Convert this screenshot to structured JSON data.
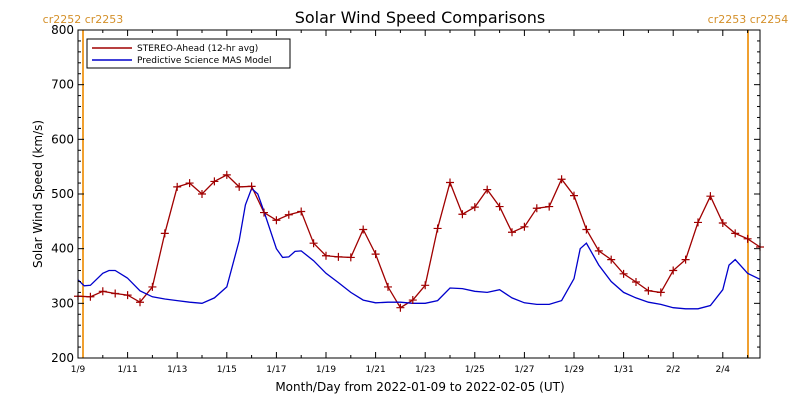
{
  "header": {
    "title": "Solar Wind Speed Comparisons",
    "left_rotation": "cr2252 cr2253",
    "right_rotation": "cr2253 cr2254"
  },
  "colors": {
    "observed": "#a00000",
    "model": "#0000cc",
    "rotation_marker": "#f0a030",
    "axis": "#000000",
    "header_text": "#d4902a"
  },
  "chart_data": {
    "type": "line",
    "title": "Solar Wind Speed Comparisons",
    "xlabel": "Month/Day from 2022-01-09 to 2022-02-05 (UT)",
    "ylabel": "Solar Wind Speed (km/s)",
    "xlim": [
      "2022-01-09",
      "2022-02-05 12:00"
    ],
    "ylim": [
      200,
      800
    ],
    "x_ticks": [
      "1/9",
      "1/11",
      "1/13",
      "1/15",
      "1/17",
      "1/19",
      "1/21",
      "1/23",
      "1/25",
      "1/27",
      "1/29",
      "1/31",
      "2/2",
      "2/4"
    ],
    "x_tick_dates": [
      "2022-01-09",
      "2022-01-11",
      "2022-01-13",
      "2022-01-15",
      "2022-01-17",
      "2022-01-19",
      "2022-01-21",
      "2022-01-23",
      "2022-01-25",
      "2022-01-27",
      "2022-01-29",
      "2022-01-31",
      "2022-02-02",
      "2022-02-04"
    ],
    "y_ticks": [
      200,
      300,
      400,
      500,
      600,
      700,
      800
    ],
    "legend_position": "top-left",
    "rotation_markers": [
      "2022-01-09",
      "2022-02-05"
    ],
    "series": [
      {
        "name": "STEREO-Ahead (12-hr avg)",
        "marker": "+",
        "x": [
          "2022-01-09 00:00",
          "2022-01-09 12:00",
          "2022-01-10 00:00",
          "2022-01-10 12:00",
          "2022-01-11 00:00",
          "2022-01-11 12:00",
          "2022-01-12 00:00",
          "2022-01-12 12:00",
          "2022-01-13 00:00",
          "2022-01-13 12:00",
          "2022-01-14 00:00",
          "2022-01-14 12:00",
          "2022-01-15 00:00",
          "2022-01-15 12:00",
          "2022-01-16 00:00",
          "2022-01-16 12:00",
          "2022-01-17 00:00",
          "2022-01-17 12:00",
          "2022-01-18 00:00",
          "2022-01-18 12:00",
          "2022-01-19 00:00",
          "2022-01-19 12:00",
          "2022-01-20 00:00",
          "2022-01-20 12:00",
          "2022-01-21 00:00",
          "2022-01-21 12:00",
          "2022-01-22 00:00",
          "2022-01-22 12:00",
          "2022-01-23 00:00",
          "2022-01-23 12:00",
          "2022-01-24 00:00",
          "2022-01-24 12:00",
          "2022-01-25 00:00",
          "2022-01-25 12:00",
          "2022-01-26 00:00",
          "2022-01-26 12:00",
          "2022-01-27 00:00",
          "2022-01-27 12:00",
          "2022-01-28 00:00",
          "2022-01-28 12:00",
          "2022-01-29 00:00",
          "2022-01-29 12:00",
          "2022-01-30 00:00",
          "2022-01-30 12:00",
          "2022-01-31 00:00",
          "2022-01-31 12:00",
          "2022-02-01 00:00",
          "2022-02-01 12:00",
          "2022-02-02 00:00",
          "2022-02-02 12:00",
          "2022-02-03 00:00",
          "2022-02-03 12:00",
          "2022-02-04 00:00",
          "2022-02-04 12:00",
          "2022-02-05 00:00",
          "2022-02-05 12:00"
        ],
        "y": [
          313,
          312,
          322,
          318,
          315,
          302,
          330,
          428,
          513,
          520,
          500,
          523,
          535,
          513,
          514,
          466,
          452,
          462,
          468,
          410,
          387,
          385,
          384,
          435,
          390,
          330,
          292,
          306,
          333,
          437,
          521,
          463,
          476,
          508,
          477,
          430,
          440,
          474,
          477,
          527,
          497,
          435,
          396,
          380,
          354,
          339,
          323,
          320,
          360,
          380,
          448,
          496,
          447,
          428,
          418,
          403
        ]
      },
      {
        "name": "Predictive Science MAS Model",
        "marker": "",
        "x": [
          "2022-01-09 00:00",
          "2022-01-09 06:00",
          "2022-01-09 12:00",
          "2022-01-10 00:00",
          "2022-01-10 06:00",
          "2022-01-10 12:00",
          "2022-01-11 00:00",
          "2022-01-11 12:00",
          "2022-01-12 00:00",
          "2022-01-12 12:00",
          "2022-01-13 00:00",
          "2022-01-13 12:00",
          "2022-01-14 00:00",
          "2022-01-14 12:00",
          "2022-01-15 00:00",
          "2022-01-15 12:00",
          "2022-01-15 18:00",
          "2022-01-16 00:00",
          "2022-01-16 06:00",
          "2022-01-16 12:00",
          "2022-01-17 00:00",
          "2022-01-17 06:00",
          "2022-01-17 12:00",
          "2022-01-17 18:00",
          "2022-01-18 00:00",
          "2022-01-18 12:00",
          "2022-01-19 00:00",
          "2022-01-19 12:00",
          "2022-01-20 00:00",
          "2022-01-20 12:00",
          "2022-01-21 00:00",
          "2022-01-21 12:00",
          "2022-01-22 00:00",
          "2022-01-22 12:00",
          "2022-01-23 00:00",
          "2022-01-23 12:00",
          "2022-01-24 00:00",
          "2022-01-24 12:00",
          "2022-01-25 00:00",
          "2022-01-25 12:00",
          "2022-01-26 00:00",
          "2022-01-26 12:00",
          "2022-01-27 00:00",
          "2022-01-27 12:00",
          "2022-01-28 00:00",
          "2022-01-28 12:00",
          "2022-01-29 00:00",
          "2022-01-29 06:00",
          "2022-01-29 12:00",
          "2022-01-30 00:00",
          "2022-01-30 12:00",
          "2022-01-31 00:00",
          "2022-01-31 12:00",
          "2022-02-01 00:00",
          "2022-02-01 12:00",
          "2022-02-02 00:00",
          "2022-02-02 12:00",
          "2022-02-03 00:00",
          "2022-02-03 12:00",
          "2022-02-04 00:00",
          "2022-02-04 06:00",
          "2022-02-04 12:00",
          "2022-02-05 00:00",
          "2022-02-05 12:00"
        ],
        "y": [
          343,
          332,
          333,
          355,
          360,
          360,
          346,
          323,
          312,
          308,
          305,
          302,
          300,
          310,
          330,
          415,
          480,
          510,
          500,
          468,
          400,
          384,
          385,
          395,
          396,
          378,
          355,
          338,
          320,
          306,
          301,
          302,
          302,
          300,
          300,
          305,
          328,
          327,
          322,
          320,
          325,
          310,
          301,
          298,
          298,
          305,
          345,
          400,
          410,
          370,
          340,
          320,
          310,
          302,
          298,
          292,
          290,
          290,
          296,
          325,
          370,
          380,
          355,
          344
        ]
      }
    ]
  }
}
